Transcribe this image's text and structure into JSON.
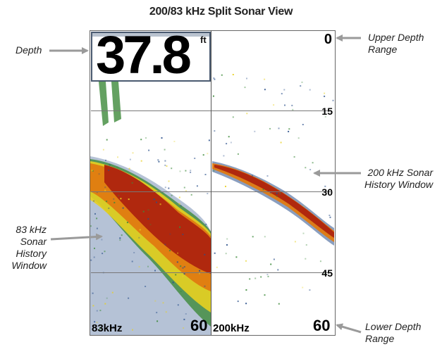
{
  "title": "200/83 kHz Split Sonar View",
  "depth": {
    "value": "37.8",
    "unit": "ft"
  },
  "scale": {
    "upper": "0",
    "marks": [
      "15",
      "30",
      "45"
    ],
    "lower": "60"
  },
  "left_panel": {
    "freq_label": "83kHz",
    "bottom_depth": "60"
  },
  "right_panel": {
    "freq_label": "200kHz",
    "bottom_depth": "60"
  },
  "callouts": {
    "depth": "Depth",
    "upper_range": [
      "Upper Depth",
      "Range"
    ],
    "window_200": [
      "200 kHz Sonar",
      "History Window"
    ],
    "window_83": [
      "83 kHz",
      "Sonar",
      "History",
      "Window"
    ],
    "lower_range": [
      "Lower Depth",
      "Range"
    ]
  },
  "colors": {
    "sonar_red": "#b0280e",
    "sonar_orange": "#e07a10",
    "sonar_yellow": "#e8d020",
    "sonar_green": "#3d8a3a",
    "sonar_blue": "#2a4f8a",
    "arrow": "#9a9a9a"
  }
}
